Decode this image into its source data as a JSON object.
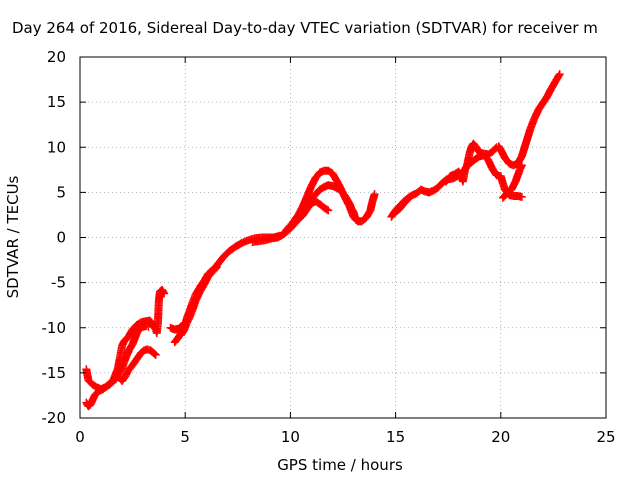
{
  "chart_data": {
    "type": "scatter",
    "title": "Day 264 of 2016, Sidereal Day-to-day VTEC variation (SDTVAR) for receiver m",
    "xlabel": "GPS time / hours",
    "ylabel": "SDTVAR / TECUs",
    "xlim": [
      0,
      25
    ],
    "ylim": [
      -20,
      20
    ],
    "xticks": [
      0,
      5,
      10,
      15,
      20,
      25
    ],
    "yticks": [
      -20,
      -15,
      -10,
      -5,
      0,
      5,
      10,
      15,
      20
    ],
    "grid": true,
    "marker": "+",
    "series": [
      {
        "color": "#ff0000",
        "tracks": [
          [
            [
              0.3,
              -14.6
            ],
            [
              0.4,
              -15.8
            ],
            [
              0.6,
              -16.3
            ],
            [
              0.8,
              -16.6
            ],
            [
              1.0,
              -16.8
            ],
            [
              1.2,
              -16.6
            ],
            [
              1.4,
              -16.3
            ],
            [
              1.6,
              -15.7
            ],
            [
              1.8,
              -14.5
            ],
            [
              1.9,
              -13.3
            ],
            [
              2.0,
              -12.0
            ],
            [
              2.1,
              -11.5
            ],
            [
              2.3,
              -11.0
            ],
            [
              2.5,
              -10.2
            ],
            [
              2.7,
              -9.7
            ],
            [
              2.9,
              -9.4
            ],
            [
              3.1,
              -9.3
            ],
            [
              3.3,
              -9.2
            ],
            [
              3.4,
              -9.4
            ],
            [
              3.5,
              -9.8
            ],
            [
              3.6,
              -10.2
            ],
            [
              3.65,
              -10.6
            ],
            [
              3.7,
              -9.5
            ],
            [
              3.75,
              -7.0
            ],
            [
              3.8,
              -6.0
            ],
            [
              3.9,
              -5.8
            ],
            [
              4.0,
              -6.2
            ]
          ],
          [
            [
              0.3,
              -18.3
            ],
            [
              0.4,
              -18.7
            ],
            [
              0.5,
              -18.5
            ],
            [
              0.7,
              -17.5
            ],
            [
              0.9,
              -17.0
            ],
            [
              1.1,
              -16.8
            ],
            [
              1.3,
              -16.4
            ],
            [
              1.5,
              -16.1
            ],
            [
              1.7,
              -15.7
            ],
            [
              1.85,
              -15.0
            ],
            [
              2.0,
              -14.5
            ],
            [
              2.1,
              -13.8
            ],
            [
              2.2,
              -13.2
            ],
            [
              2.35,
              -12.4
            ],
            [
              2.5,
              -11.8
            ],
            [
              2.6,
              -11.2
            ],
            [
              2.7,
              -10.6
            ],
            [
              2.85,
              -10.0
            ],
            [
              3.0,
              -9.9
            ],
            [
              3.15,
              -9.8
            ],
            [
              3.25,
              -9.9
            ]
          ],
          [
            [
              1.9,
              -15.6
            ],
            [
              2.0,
              -15.9
            ],
            [
              2.15,
              -15.4
            ],
            [
              2.3,
              -14.7
            ],
            [
              2.45,
              -14.3
            ],
            [
              2.6,
              -13.8
            ],
            [
              2.75,
              -13.3
            ],
            [
              2.9,
              -12.8
            ],
            [
              3.05,
              -12.5
            ],
            [
              3.2,
              -12.4
            ],
            [
              3.35,
              -12.5
            ],
            [
              3.5,
              -12.8
            ],
            [
              3.6,
              -13.0
            ]
          ],
          [
            [
              4.3,
              -10.0
            ],
            [
              4.5,
              -10.2
            ],
            [
              4.7,
              -10.1
            ],
            [
              4.85,
              -9.8
            ],
            [
              4.95,
              -9.5
            ]
          ],
          [
            [
              4.5,
              -11.6
            ],
            [
              4.6,
              -11.3
            ],
            [
              4.75,
              -10.8
            ],
            [
              4.9,
              -10.2
            ],
            [
              5.0,
              -9.6
            ],
            [
              5.1,
              -8.8
            ],
            [
              5.2,
              -8.2
            ],
            [
              5.35,
              -7.2
            ],
            [
              5.5,
              -6.3
            ],
            [
              5.7,
              -5.5
            ],
            [
              5.9,
              -4.8
            ],
            [
              6.1,
              -4.0
            ],
            [
              6.3,
              -3.6
            ],
            [
              6.5,
              -3.1
            ],
            [
              6.8,
              -2.2
            ],
            [
              7.1,
              -1.5
            ],
            [
              7.4,
              -1.0
            ],
            [
              7.7,
              -0.6
            ],
            [
              8.0,
              -0.3
            ],
            [
              8.3,
              -0.1
            ],
            [
              8.6,
              0.0
            ],
            [
              8.9,
              0.0
            ],
            [
              9.2,
              0.0
            ],
            [
              9.5,
              0.2
            ]
          ],
          [
            [
              4.8,
              -10.8
            ],
            [
              4.95,
              -10.3
            ],
            [
              5.05,
              -9.6
            ],
            [
              5.2,
              -8.9
            ],
            [
              5.35,
              -8.0
            ],
            [
              5.5,
              -7.0
            ],
            [
              5.7,
              -6.0
            ],
            [
              5.9,
              -5.2
            ],
            [
              6.1,
              -4.3
            ],
            [
              6.3,
              -3.8
            ],
            [
              6.5,
              -3.3
            ]
          ],
          [
            [
              8.2,
              -0.5
            ],
            [
              8.5,
              -0.4
            ],
            [
              8.8,
              -0.3
            ],
            [
              9.1,
              -0.1
            ],
            [
              9.4,
              0.0
            ],
            [
              9.7,
              0.4
            ],
            [
              10.0,
              1.0
            ],
            [
              10.3,
              1.8
            ],
            [
              10.6,
              2.5
            ],
            [
              10.8,
              3.2
            ],
            [
              11.0,
              3.8
            ],
            [
              11.2,
              4.0
            ],
            [
              11.4,
              3.7
            ],
            [
              11.6,
              3.3
            ],
            [
              11.8,
              3.0
            ]
          ],
          [
            [
              9.8,
              0.8
            ],
            [
              10.1,
              1.6
            ],
            [
              10.4,
              2.6
            ],
            [
              10.6,
              3.5
            ],
            [
              10.8,
              4.6
            ],
            [
              11.0,
              5.7
            ],
            [
              11.2,
              6.6
            ],
            [
              11.4,
              7.2
            ],
            [
              11.6,
              7.4
            ],
            [
              11.8,
              7.4
            ],
            [
              12.0,
              7.1
            ],
            [
              12.2,
              6.3
            ],
            [
              12.4,
              5.4
            ],
            [
              12.6,
              4.4
            ],
            [
              12.8,
              3.5
            ],
            [
              13.0,
              2.3
            ],
            [
              13.2,
              1.8
            ],
            [
              13.4,
              1.8
            ],
            [
              13.6,
              2.2
            ],
            [
              13.8,
              3.0
            ],
            [
              13.9,
              4.0
            ],
            [
              14.0,
              4.8
            ]
          ],
          [
            [
              10.6,
              2.8
            ],
            [
              10.8,
              3.5
            ],
            [
              11.0,
              4.2
            ],
            [
              11.2,
              4.8
            ],
            [
              11.4,
              5.3
            ],
            [
              11.6,
              5.6
            ],
            [
              11.8,
              5.8
            ],
            [
              12.0,
              5.7
            ],
            [
              12.2,
              5.5
            ],
            [
              12.4,
              5.2
            ],
            [
              12.6,
              4.6
            ],
            [
              12.8,
              3.8
            ],
            [
              12.9,
              3.2
            ],
            [
              13.0,
              2.8
            ],
            [
              13.1,
              2.0
            ]
          ],
          [
            [
              14.8,
              2.3
            ],
            [
              15.0,
              3.0
            ],
            [
              15.2,
              3.5
            ],
            [
              15.4,
              4.0
            ],
            [
              15.6,
              4.4
            ],
            [
              15.8,
              4.7
            ],
            [
              16.0,
              4.9
            ],
            [
              16.2,
              5.3
            ],
            [
              16.4,
              5.1
            ],
            [
              16.6,
              5.0
            ],
            [
              16.8,
              5.2
            ],
            [
              17.0,
              5.5
            ],
            [
              17.2,
              6.0
            ],
            [
              17.4,
              6.4
            ],
            [
              17.6,
              6.5
            ],
            [
              17.8,
              6.6
            ],
            [
              18.0,
              6.9
            ],
            [
              18.2,
              7.1
            ],
            [
              18.4,
              8.0
            ],
            [
              18.5,
              9.2
            ],
            [
              18.6,
              10.0
            ],
            [
              18.7,
              10.4
            ],
            [
              18.8,
              10.1
            ],
            [
              18.9,
              9.7
            ],
            [
              19.0,
              9.4
            ],
            [
              19.2,
              9.3
            ],
            [
              19.4,
              9.2
            ],
            [
              19.6,
              9.5
            ],
            [
              19.8,
              10.0
            ],
            [
              19.9,
              10.1
            ],
            [
              20.0,
              9.7
            ],
            [
              20.2,
              8.8
            ],
            [
              20.4,
              8.2
            ],
            [
              20.6,
              8.0
            ],
            [
              20.8,
              8.2
            ],
            [
              21.0,
              9.0
            ],
            [
              21.2,
              10.5
            ],
            [
              21.4,
              12.0
            ],
            [
              21.6,
              13.2
            ],
            [
              21.8,
              14.2
            ],
            [
              22.0,
              14.9
            ],
            [
              22.2,
              15.6
            ],
            [
              22.4,
              16.5
            ],
            [
              22.6,
              17.3
            ],
            [
              22.8,
              18.1
            ]
          ],
          [
            [
              15.0,
              2.8
            ],
            [
              15.2,
              3.2
            ],
            [
              15.4,
              3.8
            ],
            [
              15.6,
              4.3
            ]
          ],
          [
            [
              17.4,
              6.2
            ],
            [
              17.6,
              6.8
            ],
            [
              17.8,
              7.0
            ],
            [
              18.0,
              7.3
            ],
            [
              18.1,
              7.0
            ],
            [
              18.2,
              6.2
            ],
            [
              18.3,
              7.5
            ],
            [
              18.4,
              8.0
            ],
            [
              18.6,
              8.3
            ],
            [
              18.8,
              8.7
            ],
            [
              19.0,
              9.0
            ],
            [
              19.2,
              9.1
            ],
            [
              19.4,
              8.6
            ],
            [
              19.6,
              7.6
            ],
            [
              19.8,
              6.9
            ],
            [
              20.0,
              6.8
            ],
            [
              20.1,
              6.0
            ],
            [
              20.2,
              5.3
            ],
            [
              20.4,
              4.7
            ],
            [
              20.6,
              4.6
            ],
            [
              20.8,
              4.6
            ],
            [
              21.0,
              4.5
            ]
          ],
          [
            [
              20.1,
              4.4
            ],
            [
              20.3,
              4.9
            ],
            [
              20.5,
              5.3
            ],
            [
              20.7,
              6.2
            ],
            [
              20.9,
              7.5
            ],
            [
              21.0,
              8.0
            ]
          ]
        ]
      }
    ]
  }
}
